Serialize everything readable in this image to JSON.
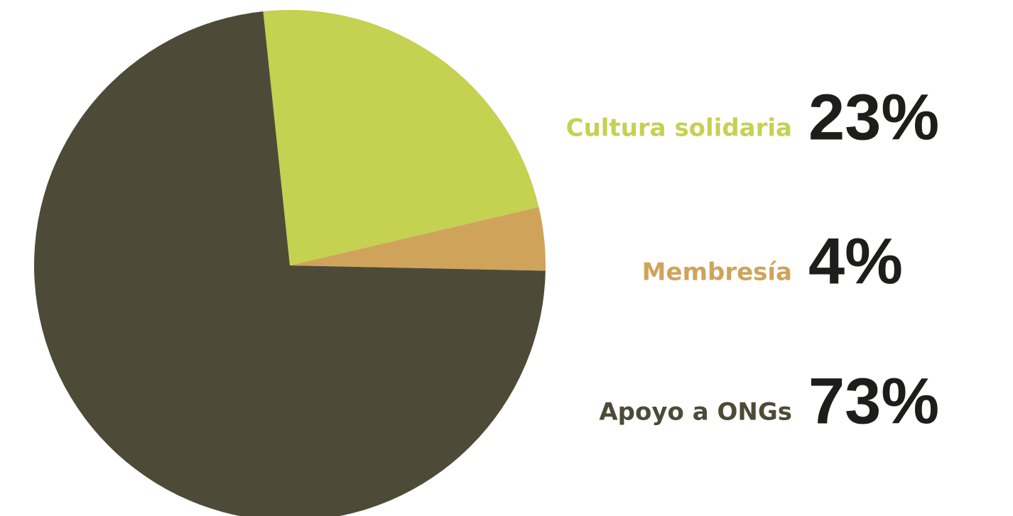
{
  "chart_data": {
    "type": "pie",
    "categories": [
      "Cultura solidaria",
      "Membresía",
      "Apoyo a ONGs"
    ],
    "values": [
      23,
      4,
      73
    ],
    "value_labels": [
      "23%",
      "4%",
      "73%"
    ],
    "colors": [
      "#c5d150",
      "#cfa45a",
      "#4d4b38"
    ]
  }
}
